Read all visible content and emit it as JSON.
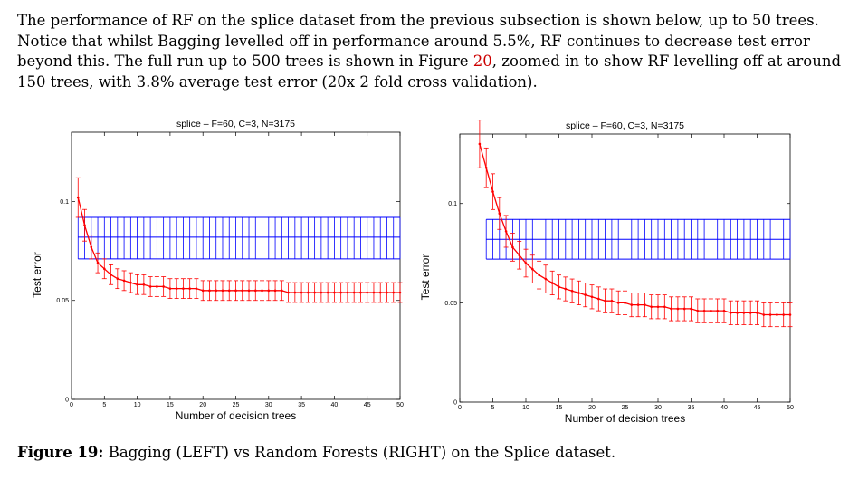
{
  "paragraph": {
    "line1": "The performance of RF on the splice dataset from the previous subsection is shown below, up to 50 trees.",
    "line2": "Notice that whilst Bagging levelled off in performance around 5.5%, RF continues to decrease test error",
    "line3a": "beyond this. The full run up to 500 trees is shown in Figure ",
    "line3link": "20",
    "line3b": ", zoomed in to show RF levelling off at around",
    "line4": "150 trees, with 3.8% average test error (20x 2 fold cross validation)."
  },
  "caption": {
    "label": "Figure 19:",
    "text": " Bagging (LEFT) vs Random Forests (RIGHT) on the Splice dataset."
  },
  "colors": {
    "series": "#ff0000",
    "reference": "#0000ff",
    "link": "#cc0000"
  },
  "chart_data": [
    {
      "type": "line",
      "title": "splice – F=60, C=3, N=3175",
      "xlabel": "Number of decision trees",
      "ylabel": "Test error",
      "xlim": [
        0,
        50
      ],
      "ylim": [
        0,
        0.135
      ],
      "xticks": [
        "0",
        "5",
        "10",
        "15",
        "20",
        "25",
        "30",
        "35",
        "40",
        "45",
        "50"
      ],
      "yticks": [
        {
          "v": 0,
          "label": "0"
        },
        {
          "v": 0.05,
          "label": "0.05"
        },
        {
          "v": 0.1,
          "label": "0.1"
        }
      ],
      "reference_band": {
        "low": 0.071,
        "mid": 0.082,
        "high": 0.092,
        "x_from": 1,
        "x_to": 50
      },
      "series": [
        {
          "x": [
            1,
            2,
            3,
            4,
            5,
            6,
            7,
            8,
            9,
            10,
            11,
            12,
            13,
            14,
            15,
            16,
            17,
            18,
            19,
            20,
            21,
            22,
            23,
            24,
            25,
            26,
            27,
            28,
            29,
            30,
            31,
            32,
            33,
            34,
            35,
            36,
            37,
            38,
            39,
            40,
            41,
            42,
            43,
            44,
            45,
            46,
            47,
            48,
            49,
            50
          ],
          "y": [
            0.102,
            0.088,
            0.077,
            0.069,
            0.066,
            0.063,
            0.061,
            0.06,
            0.059,
            0.058,
            0.058,
            0.057,
            0.057,
            0.057,
            0.056,
            0.056,
            0.056,
            0.056,
            0.056,
            0.055,
            0.055,
            0.055,
            0.055,
            0.055,
            0.055,
            0.055,
            0.055,
            0.055,
            0.055,
            0.055,
            0.055,
            0.055,
            0.054,
            0.054,
            0.054,
            0.054,
            0.054,
            0.054,
            0.054,
            0.054,
            0.054,
            0.054,
            0.054,
            0.054,
            0.054,
            0.054,
            0.054,
            0.054,
            0.054,
            0.054
          ],
          "err": [
            0.01,
            0.008,
            0.006,
            0.005,
            0.005,
            0.005,
            0.005,
            0.005,
            0.005,
            0.005,
            0.005,
            0.005,
            0.005,
            0.005,
            0.005,
            0.005,
            0.005,
            0.005,
            0.005,
            0.005,
            0.005,
            0.005,
            0.005,
            0.005,
            0.005,
            0.005,
            0.005,
            0.005,
            0.005,
            0.005,
            0.005,
            0.005,
            0.005,
            0.005,
            0.005,
            0.005,
            0.005,
            0.005,
            0.005,
            0.005,
            0.005,
            0.005,
            0.005,
            0.005,
            0.005,
            0.005,
            0.005,
            0.005,
            0.005,
            0.005
          ]
        }
      ]
    },
    {
      "type": "line",
      "title": "splice – F=60, C=3, N=3175",
      "xlabel": "Number of decision trees",
      "ylabel": "Test error",
      "xlim": [
        0,
        50
      ],
      "ylim": [
        0,
        0.135
      ],
      "xticks": [
        "0",
        "5",
        "10",
        "15",
        "20",
        "25",
        "30",
        "35",
        "40",
        "45",
        "50"
      ],
      "yticks": [
        {
          "v": 0,
          "label": "0"
        },
        {
          "v": 0.05,
          "label": "0.05"
        },
        {
          "v": 0.1,
          "label": "0.1"
        }
      ],
      "reference_band": {
        "low": 0.072,
        "mid": 0.082,
        "high": 0.092,
        "x_from": 4,
        "x_to": 50
      },
      "series": [
        {
          "x": [
            3,
            4,
            5,
            6,
            7,
            8,
            9,
            10,
            11,
            12,
            13,
            14,
            15,
            16,
            17,
            18,
            19,
            20,
            21,
            22,
            23,
            24,
            25,
            26,
            27,
            28,
            29,
            30,
            31,
            32,
            33,
            34,
            35,
            36,
            37,
            38,
            39,
            40,
            41,
            42,
            43,
            44,
            45,
            46,
            47,
            48,
            49,
            50
          ],
          "y": [
            0.13,
            0.118,
            0.106,
            0.095,
            0.086,
            0.078,
            0.074,
            0.07,
            0.067,
            0.064,
            0.062,
            0.06,
            0.058,
            0.057,
            0.056,
            0.055,
            0.054,
            0.053,
            0.052,
            0.051,
            0.051,
            0.05,
            0.05,
            0.049,
            0.049,
            0.049,
            0.048,
            0.048,
            0.048,
            0.047,
            0.047,
            0.047,
            0.047,
            0.046,
            0.046,
            0.046,
            0.046,
            0.046,
            0.045,
            0.045,
            0.045,
            0.045,
            0.045,
            0.044,
            0.044,
            0.044,
            0.044,
            0.044
          ],
          "err": [
            0.012,
            0.01,
            0.009,
            0.008,
            0.008,
            0.007,
            0.007,
            0.007,
            0.007,
            0.007,
            0.007,
            0.006,
            0.006,
            0.006,
            0.006,
            0.006,
            0.006,
            0.006,
            0.006,
            0.006,
            0.006,
            0.006,
            0.006,
            0.006,
            0.006,
            0.006,
            0.006,
            0.006,
            0.006,
            0.006,
            0.006,
            0.006,
            0.006,
            0.006,
            0.006,
            0.006,
            0.006,
            0.006,
            0.006,
            0.006,
            0.006,
            0.006,
            0.006,
            0.006,
            0.006,
            0.006,
            0.006,
            0.006
          ]
        }
      ]
    }
  ]
}
